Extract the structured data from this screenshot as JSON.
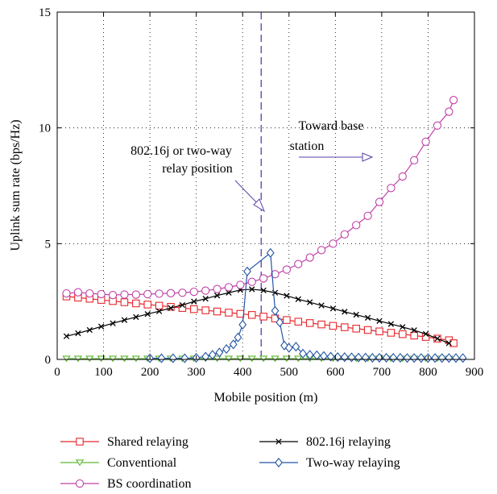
{
  "chart_data": {
    "type": "line",
    "xlabel": "Mobile position (m)",
    "ylabel": "Uplink sum rate (bps/Hz)",
    "xlim": [
      0,
      900
    ],
    "ylim": [
      0,
      15
    ],
    "xticks": [
      0,
      100,
      200,
      300,
      400,
      500,
      600,
      700,
      800,
      900
    ],
    "yticks": [
      0,
      5,
      10,
      15
    ],
    "grid": true,
    "legend_placement": "below",
    "annotations": [
      {
        "text_lines": [
          "802.16j or two-way",
          "relay position"
        ]
      },
      {
        "text_lines": [
          "Toward base",
          "station"
        ]
      }
    ],
    "relay_position_x": 440,
    "series": [
      {
        "name": "Shared relaying",
        "color": "#e8262b",
        "marker": "square",
        "x": [
          20,
          45,
          70,
          95,
          120,
          145,
          170,
          195,
          220,
          245,
          270,
          295,
          320,
          345,
          370,
          395,
          420,
          445,
          470,
          495,
          520,
          545,
          570,
          595,
          620,
          645,
          670,
          695,
          720,
          745,
          770,
          795,
          820,
          845,
          855
        ],
        "values": [
          2.72,
          2.67,
          2.62,
          2.57,
          2.52,
          2.47,
          2.42,
          2.37,
          2.32,
          2.27,
          2.22,
          2.17,
          2.12,
          2.07,
          2.02,
          1.97,
          1.92,
          1.85,
          1.77,
          1.7,
          1.63,
          1.57,
          1.51,
          1.45,
          1.39,
          1.33,
          1.27,
          1.21,
          1.15,
          1.09,
          1.03,
          0.97,
          0.9,
          0.83,
          0.7
        ]
      },
      {
        "name": "802.16j relaying",
        "color": "#000000",
        "marker": "x",
        "x": [
          20,
          45,
          70,
          95,
          120,
          145,
          170,
          195,
          220,
          245,
          270,
          295,
          320,
          345,
          370,
          395,
          420,
          445,
          470,
          495,
          520,
          545,
          570,
          595,
          620,
          645,
          670,
          695,
          720,
          745,
          770,
          795,
          820,
          845
        ],
        "values": [
          1.0,
          1.13,
          1.27,
          1.42,
          1.56,
          1.7,
          1.83,
          1.96,
          2.08,
          2.22,
          2.35,
          2.5,
          2.62,
          2.76,
          2.88,
          3.0,
          3.03,
          2.98,
          2.88,
          2.75,
          2.6,
          2.47,
          2.33,
          2.2,
          2.06,
          1.93,
          1.8,
          1.66,
          1.53,
          1.4,
          1.26,
          1.1,
          0.9,
          0.7
        ]
      },
      {
        "name": "Conventional",
        "color": "#5fb833",
        "marker": "triangle-down",
        "x": [
          20,
          45,
          70,
          95,
          120,
          145,
          170,
          195,
          220,
          245,
          270,
          295,
          320,
          345,
          370,
          395,
          420,
          445,
          470,
          495,
          520,
          545,
          570,
          595,
          620,
          645,
          670,
          695,
          720,
          745,
          770,
          795,
          820,
          845
        ],
        "values": [
          0.03,
          0.03,
          0.03,
          0.03,
          0.03,
          0.03,
          0.03,
          0.03,
          0.03,
          0.03,
          0.03,
          0.03,
          0.03,
          0.03,
          0.03,
          0.03,
          0.03,
          0.03,
          0.03,
          0.03,
          0.03,
          0.03,
          0.03,
          0.03,
          0.03,
          0.03,
          0.03,
          0.03,
          0.03,
          0.03,
          0.03,
          0.03,
          0.03,
          0.03
        ]
      },
      {
        "name": "Two-way relaying",
        "color": "#2455a4",
        "marker": "diamond",
        "x": [
          200,
          225,
          250,
          275,
          300,
          320,
          335,
          350,
          365,
          380,
          390,
          400,
          410,
          460,
          470,
          480,
          490,
          500,
          515,
          530,
          545,
          560,
          575,
          590,
          605,
          620,
          635,
          650,
          665,
          680,
          695,
          710,
          725,
          740,
          755,
          770,
          785,
          800,
          815,
          830,
          845,
          860,
          875
        ],
        "values": [
          0.05,
          0.05,
          0.05,
          0.05,
          0.07,
          0.12,
          0.2,
          0.3,
          0.45,
          0.65,
          0.95,
          1.5,
          3.8,
          4.6,
          2.1,
          1.6,
          0.6,
          0.5,
          0.55,
          0.25,
          0.2,
          0.18,
          0.15,
          0.12,
          0.1,
          0.1,
          0.09,
          0.08,
          0.08,
          0.07,
          0.07,
          0.07,
          0.07,
          0.07,
          0.06,
          0.06,
          0.06,
          0.06,
          0.06,
          0.06,
          0.06,
          0.06,
          0.06
        ]
      },
      {
        "name": "BS coordination",
        "color": "#c040a8",
        "marker": "circle",
        "x": [
          20,
          45,
          70,
          95,
          120,
          145,
          170,
          195,
          220,
          245,
          270,
          295,
          320,
          345,
          370,
          395,
          420,
          445,
          470,
          495,
          520,
          545,
          570,
          595,
          620,
          645,
          670,
          695,
          720,
          745,
          770,
          795,
          820,
          845
        ],
        "values": [
          2.85,
          2.9,
          2.85,
          2.82,
          2.78,
          2.8,
          2.8,
          2.82,
          2.84,
          2.86,
          2.88,
          2.92,
          2.97,
          3.04,
          3.12,
          3.22,
          3.35,
          3.5,
          3.68,
          3.88,
          4.12,
          4.4,
          4.72,
          5.0,
          5.4,
          5.8,
          6.2,
          6.8,
          7.4,
          7.9,
          8.6,
          9.4,
          10.1,
          10.7
        ]
      }
    ]
  },
  "extra_points": {
    "BS coordination": [
      [
        855,
        11.2
      ]
    ]
  }
}
